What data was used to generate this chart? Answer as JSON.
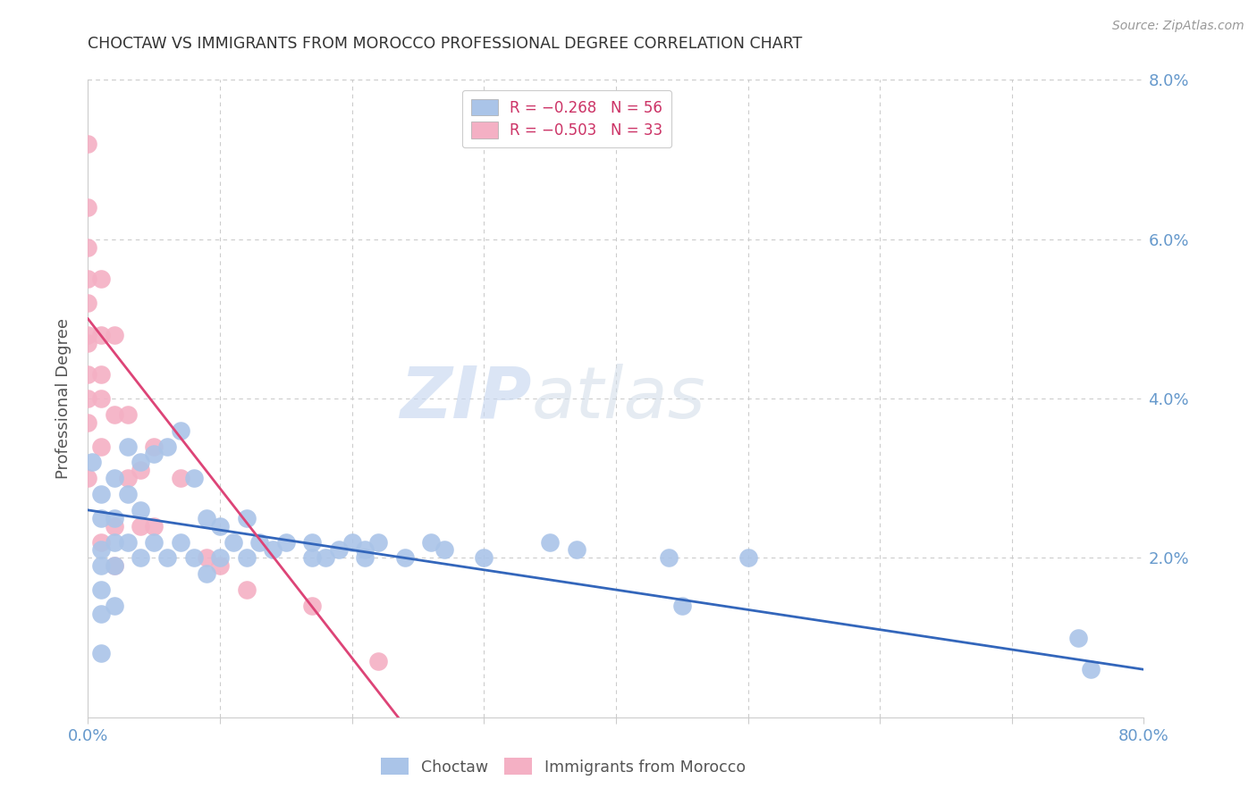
{
  "title": "CHOCTAW VS IMMIGRANTS FROM MOROCCO PROFESSIONAL DEGREE CORRELATION CHART",
  "source": "Source: ZipAtlas.com",
  "ylabel": "Professional Degree",
  "xlim": [
    0,
    0.8
  ],
  "ylim": [
    0,
    0.08
  ],
  "title_color": "#333333",
  "source_color": "#999999",
  "axis_color": "#cccccc",
  "tick_color": "#6699cc",
  "grid_color": "#cccccc",
  "background_color": "#ffffff",
  "watermark_zip": "ZIP",
  "watermark_atlas": "atlas",
  "choctaw_color": "#aac4e8",
  "morocco_color": "#f4b0c4",
  "choctaw_line_color": "#3366bb",
  "morocco_line_color": "#dd4477",
  "choctaw_x": [
    0.003,
    0.01,
    0.01,
    0.01,
    0.01,
    0.01,
    0.01,
    0.01,
    0.02,
    0.02,
    0.02,
    0.02,
    0.02,
    0.03,
    0.03,
    0.03,
    0.04,
    0.04,
    0.04,
    0.05,
    0.05,
    0.06,
    0.06,
    0.07,
    0.07,
    0.08,
    0.08,
    0.09,
    0.09,
    0.1,
    0.1,
    0.11,
    0.12,
    0.12,
    0.13,
    0.14,
    0.15,
    0.17,
    0.17,
    0.18,
    0.19,
    0.2,
    0.21,
    0.21,
    0.22,
    0.24,
    0.26,
    0.27,
    0.3,
    0.35,
    0.37,
    0.44,
    0.45,
    0.5,
    0.75,
    0.76
  ],
  "choctaw_y": [
    0.032,
    0.028,
    0.025,
    0.021,
    0.019,
    0.016,
    0.013,
    0.008,
    0.03,
    0.025,
    0.022,
    0.019,
    0.014,
    0.034,
    0.028,
    0.022,
    0.032,
    0.026,
    0.02,
    0.033,
    0.022,
    0.034,
    0.02,
    0.036,
    0.022,
    0.03,
    0.02,
    0.025,
    0.018,
    0.024,
    0.02,
    0.022,
    0.025,
    0.02,
    0.022,
    0.021,
    0.022,
    0.022,
    0.02,
    0.02,
    0.021,
    0.022,
    0.021,
    0.02,
    0.022,
    0.02,
    0.022,
    0.021,
    0.02,
    0.022,
    0.021,
    0.02,
    0.014,
    0.02,
    0.01,
    0.006
  ],
  "morocco_x": [
    0.0,
    0.0,
    0.0,
    0.0,
    0.0,
    0.0,
    0.0,
    0.0,
    0.0,
    0.0,
    0.0,
    0.01,
    0.01,
    0.01,
    0.01,
    0.01,
    0.01,
    0.02,
    0.02,
    0.02,
    0.02,
    0.03,
    0.03,
    0.04,
    0.04,
    0.05,
    0.05,
    0.07,
    0.09,
    0.1,
    0.12,
    0.17,
    0.22
  ],
  "morocco_y": [
    0.072,
    0.064,
    0.059,
    0.055,
    0.052,
    0.048,
    0.047,
    0.043,
    0.04,
    0.037,
    0.03,
    0.055,
    0.048,
    0.043,
    0.04,
    0.034,
    0.022,
    0.048,
    0.038,
    0.024,
    0.019,
    0.038,
    0.03,
    0.031,
    0.024,
    0.034,
    0.024,
    0.03,
    0.02,
    0.019,
    0.016,
    0.014,
    0.007
  ],
  "choctaw_line_x": [
    0.0,
    0.8
  ],
  "choctaw_line_y": [
    0.026,
    0.006
  ],
  "morocco_line_x": [
    0.0,
    0.235
  ],
  "morocco_line_y": [
    0.05,
    0.0
  ]
}
